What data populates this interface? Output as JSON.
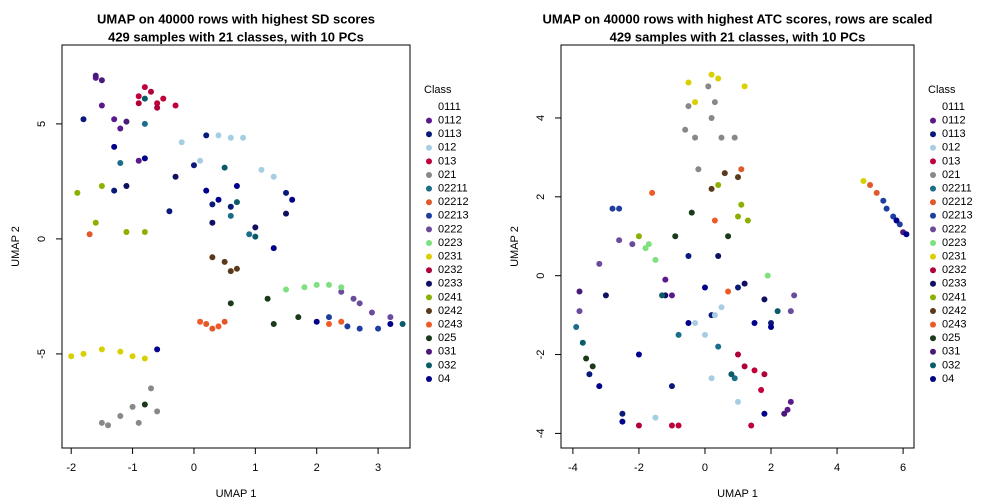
{
  "chart_data": [
    {
      "type": "scatter",
      "title": "UMAP on 40000 rows with highest SD scores",
      "subtitle": "429 samples with 21 classes, with 10 PCs",
      "xlabel": "UMAP 1",
      "ylabel": "UMAP 2",
      "legend_title": "Class",
      "xlim": [
        -2.15,
        3.52
      ],
      "ylim": [
        -9.09,
        8.43
      ],
      "xticks": [
        -2,
        -1,
        0,
        1,
        2,
        3
      ],
      "yticks": [
        -5,
        0,
        5
      ],
      "series": [
        {
          "name": "0111",
          "color": "#ffffff",
          "x": [],
          "y": []
        },
        {
          "name": "0112",
          "color": "#5a1a8c",
          "x": [
            -1.6,
            -1.3,
            -1.5,
            -1.2,
            -0.9
          ],
          "y": [
            7,
            5.2,
            5.8,
            4.8,
            3.4
          ]
        },
        {
          "name": "0113",
          "color": "#0a1a7a",
          "x": [
            -1.8,
            -1.3,
            0,
            0.3,
            0.6,
            1.5,
            -0.4,
            0.2
          ],
          "y": [
            5.2,
            2.1,
            3.2,
            1.5,
            1.4,
            2,
            1.2,
            4.5
          ]
        },
        {
          "name": "012",
          "color": "#a6cee3",
          "x": [
            0.4,
            0.6,
            0.8,
            0.1,
            1.1,
            1.3,
            -0.2
          ],
          "y": [
            4.5,
            4.4,
            4.4,
            3.4,
            3,
            2.7,
            4.2
          ]
        },
        {
          "name": "013",
          "color": "#c0003a",
          "x": [
            -0.9,
            -0.6,
            -0.8,
            -0.5,
            -0.3
          ],
          "y": [
            6.2,
            5.9,
            6.6,
            6.1,
            5.8
          ]
        },
        {
          "name": "021",
          "color": "#888888",
          "x": [
            -1.5,
            -1.2,
            -0.9,
            -0.7,
            -0.6,
            -1.0,
            -1.4
          ],
          "y": [
            -8,
            -7.7,
            -8,
            -6.5,
            -7.5,
            -7.3,
            -8.1
          ]
        },
        {
          "name": "02211",
          "color": "#1a6e8a",
          "x": [
            -0.8,
            0.6,
            0.9,
            -1.2
          ],
          "y": [
            5,
            1.0,
            0.2,
            3.3
          ]
        },
        {
          "name": "02212",
          "color": "#e0592a",
          "x": [
            -1.7,
            0.2,
            0.3,
            0.5
          ],
          "y": [
            0.2,
            -3.7,
            -3.9,
            -3.6
          ]
        },
        {
          "name": "02213",
          "color": "#1f3fa0",
          "x": [
            2.5,
            2.7,
            3.0,
            2.2
          ],
          "y": [
            -3.8,
            -3.9,
            -3.9,
            -3.4
          ]
        },
        {
          "name": "0222",
          "color": "#6a4c9c",
          "x": [
            2.4,
            2.7,
            2.9,
            3.2,
            2.6
          ],
          "y": [
            -2.3,
            -2.8,
            -3.2,
            -3.4,
            -2.6
          ]
        },
        {
          "name": "0223",
          "color": "#7ee07e",
          "x": [
            1.5,
            1.8,
            2.0,
            2.2,
            2.4
          ],
          "y": [
            -2.2,
            -2.1,
            -2.0,
            -2.0,
            -2.1
          ]
        },
        {
          "name": "0231",
          "color": "#d8d000",
          "x": [
            -2,
            -1.8,
            -1.5,
            -1.2,
            -1.0,
            -0.8
          ],
          "y": [
            -5.1,
            -5.0,
            -4.8,
            -4.9,
            -5.1,
            -5.2
          ]
        },
        {
          "name": "0232",
          "color": "#b0003a",
          "x": [
            -0.9,
            -0.7,
            -0.6
          ],
          "y": [
            5.9,
            6.4,
            5.7
          ]
        },
        {
          "name": "0233",
          "color": "#101060",
          "x": [
            -1.1,
            -0.3,
            0.3,
            1.0,
            1.5
          ],
          "y": [
            2.3,
            2.7,
            0.7,
            0.5,
            1.1
          ]
        },
        {
          "name": "0241",
          "color": "#8ab000",
          "x": [
            -1.9,
            -1.6,
            -1.5,
            -1.1,
            -0.8
          ],
          "y": [
            2.0,
            0.7,
            2.3,
            0.3,
            0.3
          ]
        },
        {
          "name": "0242",
          "color": "#5a3a1a",
          "x": [
            0.3,
            0.5,
            0.6,
            0.7
          ],
          "y": [
            -0.8,
            -1.0,
            -1.4,
            -1.3
          ]
        },
        {
          "name": "0243",
          "color": "#f05a28",
          "x": [
            0.1,
            0.4,
            2.2,
            2.4
          ],
          "y": [
            -3.6,
            -3.8,
            -3.7,
            -3.6
          ]
        },
        {
          "name": "025",
          "color": "#1a3a1a",
          "x": [
            -0.8,
            0.6,
            1.3,
            1.7,
            1.2
          ],
          "y": [
            -7.2,
            -2.8,
            -3.7,
            -3.4,
            -2.6
          ]
        },
        {
          "name": "031",
          "color": "#4a1a7a",
          "x": [
            -1.6,
            -1.1,
            -1.5
          ],
          "y": [
            7.1,
            5.1,
            6.9
          ]
        },
        {
          "name": "032",
          "color": "#0a5a6a",
          "x": [
            -0.8,
            0.5,
            0.7,
            1.0,
            3.4
          ],
          "y": [
            6.1,
            3.1,
            1.6,
            0.1,
            -3.7
          ]
        },
        {
          "name": "04",
          "color": "#00008b",
          "x": [
            -1.3,
            -0.8,
            0.2,
            0.4,
            0.7,
            1.3,
            1.6,
            -0.6,
            2.0,
            3.2
          ],
          "y": [
            4.0,
            3.5,
            2.1,
            1.7,
            2.3,
            -0.4,
            1.7,
            -4.8,
            -3.6,
            -3.7
          ]
        }
      ]
    },
    {
      "type": "scatter",
      "title": "UMAP on 40000 rows with highest ATC scores, rows are scaled",
      "subtitle": "429 samples with 21 classes, with 10 PCs",
      "xlabel": "UMAP 1",
      "ylabel": "UMAP 2",
      "legend_title": "Class",
      "xlim": [
        -4.36,
        6.33
      ],
      "ylim": [
        -4.37,
        5.85
      ],
      "xticks": [
        -4,
        -2,
        0,
        2,
        4,
        6
      ],
      "yticks": [
        -4,
        -2,
        0,
        2,
        4
      ],
      "series": [
        {
          "name": "0111",
          "color": "#ffffff",
          "x": [],
          "y": []
        },
        {
          "name": "0112",
          "color": "#5a1a8c",
          "x": [
            -1.2,
            -1.0,
            2.6,
            2.5
          ],
          "y": [
            -0.1,
            -0.5,
            -3.2,
            -3.4
          ]
        },
        {
          "name": "0113",
          "color": "#0a1a7a",
          "x": [
            -3.5,
            -2.5,
            -1,
            0.2,
            1.0,
            2.0,
            -0.5
          ],
          "y": [
            -2.5,
            -3.5,
            -2.8,
            -1.0,
            -0.3,
            -1.2,
            0.5
          ]
        },
        {
          "name": "012",
          "color": "#a6cee3",
          "x": [
            -0.3,
            0.0,
            0.3,
            0.5,
            0.2,
            -1.5,
            1.0
          ],
          "y": [
            -1.2,
            -1.5,
            -1.0,
            -0.8,
            -2.6,
            -3.6,
            -3.2
          ]
        },
        {
          "name": "013",
          "color": "#c0003a",
          "x": [
            -1.0,
            -0.8,
            1.5,
            1.7,
            1.4
          ],
          "y": [
            -3.8,
            -3.8,
            -2.4,
            -2.9,
            -3.8
          ]
        },
        {
          "name": "021",
          "color": "#888888",
          "x": [
            -0.5,
            -0.6,
            -0.3,
            0.1,
            0.3,
            0.5,
            -0.2,
            0.9,
            0.2
          ],
          "y": [
            4.3,
            3.7,
            3.5,
            4.8,
            4.4,
            3.5,
            2.7,
            3.5,
            4.0
          ]
        },
        {
          "name": "02211",
          "color": "#1a6e8a",
          "x": [
            -3.9,
            -0.8,
            0.4,
            0.9
          ],
          "y": [
            -1.3,
            -1.5,
            -1.8,
            -2.6
          ]
        },
        {
          "name": "02212",
          "color": "#e0592a",
          "x": [
            5.0,
            5.2,
            1.1
          ],
          "y": [
            2.3,
            2.1,
            2.7
          ]
        },
        {
          "name": "02213",
          "color": "#1f3fa0",
          "x": [
            -2.8,
            -2.6,
            5.5,
            5.7,
            5.9,
            5.4
          ],
          "y": [
            1.7,
            1.7,
            1.7,
            1.5,
            1.3,
            1.9
          ]
        },
        {
          "name": "0222",
          "color": "#6a4c9c",
          "x": [
            -2.6,
            -2.2,
            -3.2,
            -3.8,
            2.6,
            2.7
          ],
          "y": [
            0.9,
            0.8,
            0.3,
            -0.9,
            -0.9,
            -0.5
          ]
        },
        {
          "name": "0223",
          "color": "#7ee07e",
          "x": [
            -1.8,
            -1.5,
            -1.7,
            1.9
          ],
          "y": [
            0.7,
            0.4,
            0.8,
            0.0
          ]
        },
        {
          "name": "0231",
          "color": "#d8d000",
          "x": [
            -0.5,
            -0.3,
            0.2,
            0.4,
            1.2,
            4.8
          ],
          "y": [
            4.9,
            4.4,
            5.1,
            5.0,
            4.8,
            2.4
          ]
        },
        {
          "name": "0232",
          "color": "#b0003a",
          "x": [
            -2.0,
            1.0,
            1.2,
            1.8
          ],
          "y": [
            -3.8,
            -2.0,
            -2.3,
            -2.5
          ]
        },
        {
          "name": "0233",
          "color": "#101060",
          "x": [
            -3.0,
            -1.2,
            0.4,
            1.2,
            1.8
          ],
          "y": [
            -0.5,
            -0.5,
            0.5,
            -0.2,
            -0.6
          ]
        },
        {
          "name": "0241",
          "color": "#8ab000",
          "x": [
            -2.0,
            1.0,
            1.1,
            1.3,
            0.4
          ],
          "y": [
            1.0,
            1.5,
            1.8,
            1.4,
            2.3
          ]
        },
        {
          "name": "0242",
          "color": "#5a3a1a",
          "x": [
            0.2,
            0.6,
            1.0
          ],
          "y": [
            2.2,
            2.6,
            2.5
          ]
        },
        {
          "name": "0243",
          "color": "#f05a28",
          "x": [
            -1.6,
            0.3,
            0.7
          ],
          "y": [
            2.1,
            1.4,
            -0.4
          ]
        },
        {
          "name": "025",
          "color": "#1a3a1a",
          "x": [
            -3.6,
            -3.4,
            -0.9,
            -0.4,
            0.7
          ],
          "y": [
            -2.1,
            -2.3,
            1.0,
            1.6,
            1.0
          ]
        },
        {
          "name": "031",
          "color": "#4a1a7a",
          "x": [
            -3.8,
            6.0,
            2.4
          ],
          "y": [
            -0.4,
            1.1,
            -3.5
          ]
        },
        {
          "name": "032",
          "color": "#0a5a6a",
          "x": [
            -3.7,
            -1.3,
            0.8,
            2.2
          ],
          "y": [
            -1.7,
            -0.5,
            -2.5,
            -0.9
          ]
        },
        {
          "name": "04",
          "color": "#00008b",
          "x": [
            -2.5,
            -0.5,
            1.5,
            2.0,
            5.8,
            6.1,
            -3.2,
            1.8,
            -2.0,
            0.0
          ],
          "y": [
            -3.7,
            -1.2,
            -1.2,
            -1.3,
            1.4,
            1.05,
            -2.8,
            -3.5,
            -2.0,
            -0.3
          ]
        }
      ]
    }
  ]
}
